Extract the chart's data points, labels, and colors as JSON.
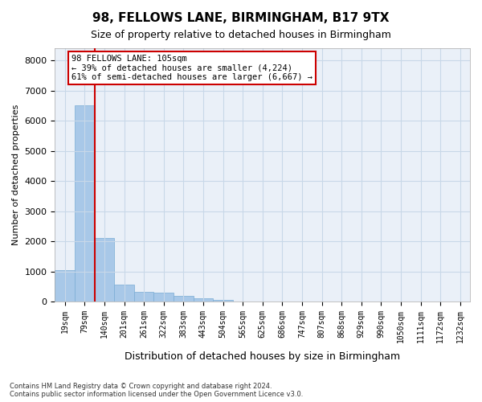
{
  "title1": "98, FELLOWS LANE, BIRMINGHAM, B17 9TX",
  "title2": "Size of property relative to detached houses in Birmingham",
  "xlabel": "Distribution of detached houses by size in Birmingham",
  "ylabel": "Number of detached properties",
  "footnote": "Contains HM Land Registry data © Crown copyright and database right 2024.\nContains public sector information licensed under the Open Government Licence v3.0.",
  "bin_labels": [
    "19sqm",
    "79sqm",
    "140sqm",
    "201sqm",
    "261sqm",
    "322sqm",
    "383sqm",
    "443sqm",
    "504sqm",
    "565sqm",
    "625sqm",
    "686sqm",
    "747sqm",
    "807sqm",
    "868sqm",
    "929sqm",
    "990sqm",
    "1050sqm",
    "1111sqm",
    "1172sqm",
    "1232sqm"
  ],
  "bar_values": [
    1050,
    6500,
    2100,
    550,
    320,
    290,
    185,
    120,
    60,
    0,
    0,
    0,
    0,
    0,
    0,
    0,
    0,
    0,
    0,
    0,
    0
  ],
  "bar_color": "#a8c8e8",
  "bar_edgecolor": "#7aacd4",
  "annotation_text": "98 FELLOWS LANE: 105sqm\n← 39% of detached houses are smaller (4,224)\n61% of semi-detached houses are larger (6,667) →",
  "annotation_box_color": "#ffffff",
  "annotation_box_edgecolor": "#cc0000",
  "vline_color": "#cc0000",
  "grid_color": "#c8d8e8",
  "bg_color": "#eaf0f8",
  "ylim": [
    0,
    8400
  ],
  "yticks": [
    0,
    1000,
    2000,
    3000,
    4000,
    5000,
    6000,
    7000,
    8000
  ]
}
